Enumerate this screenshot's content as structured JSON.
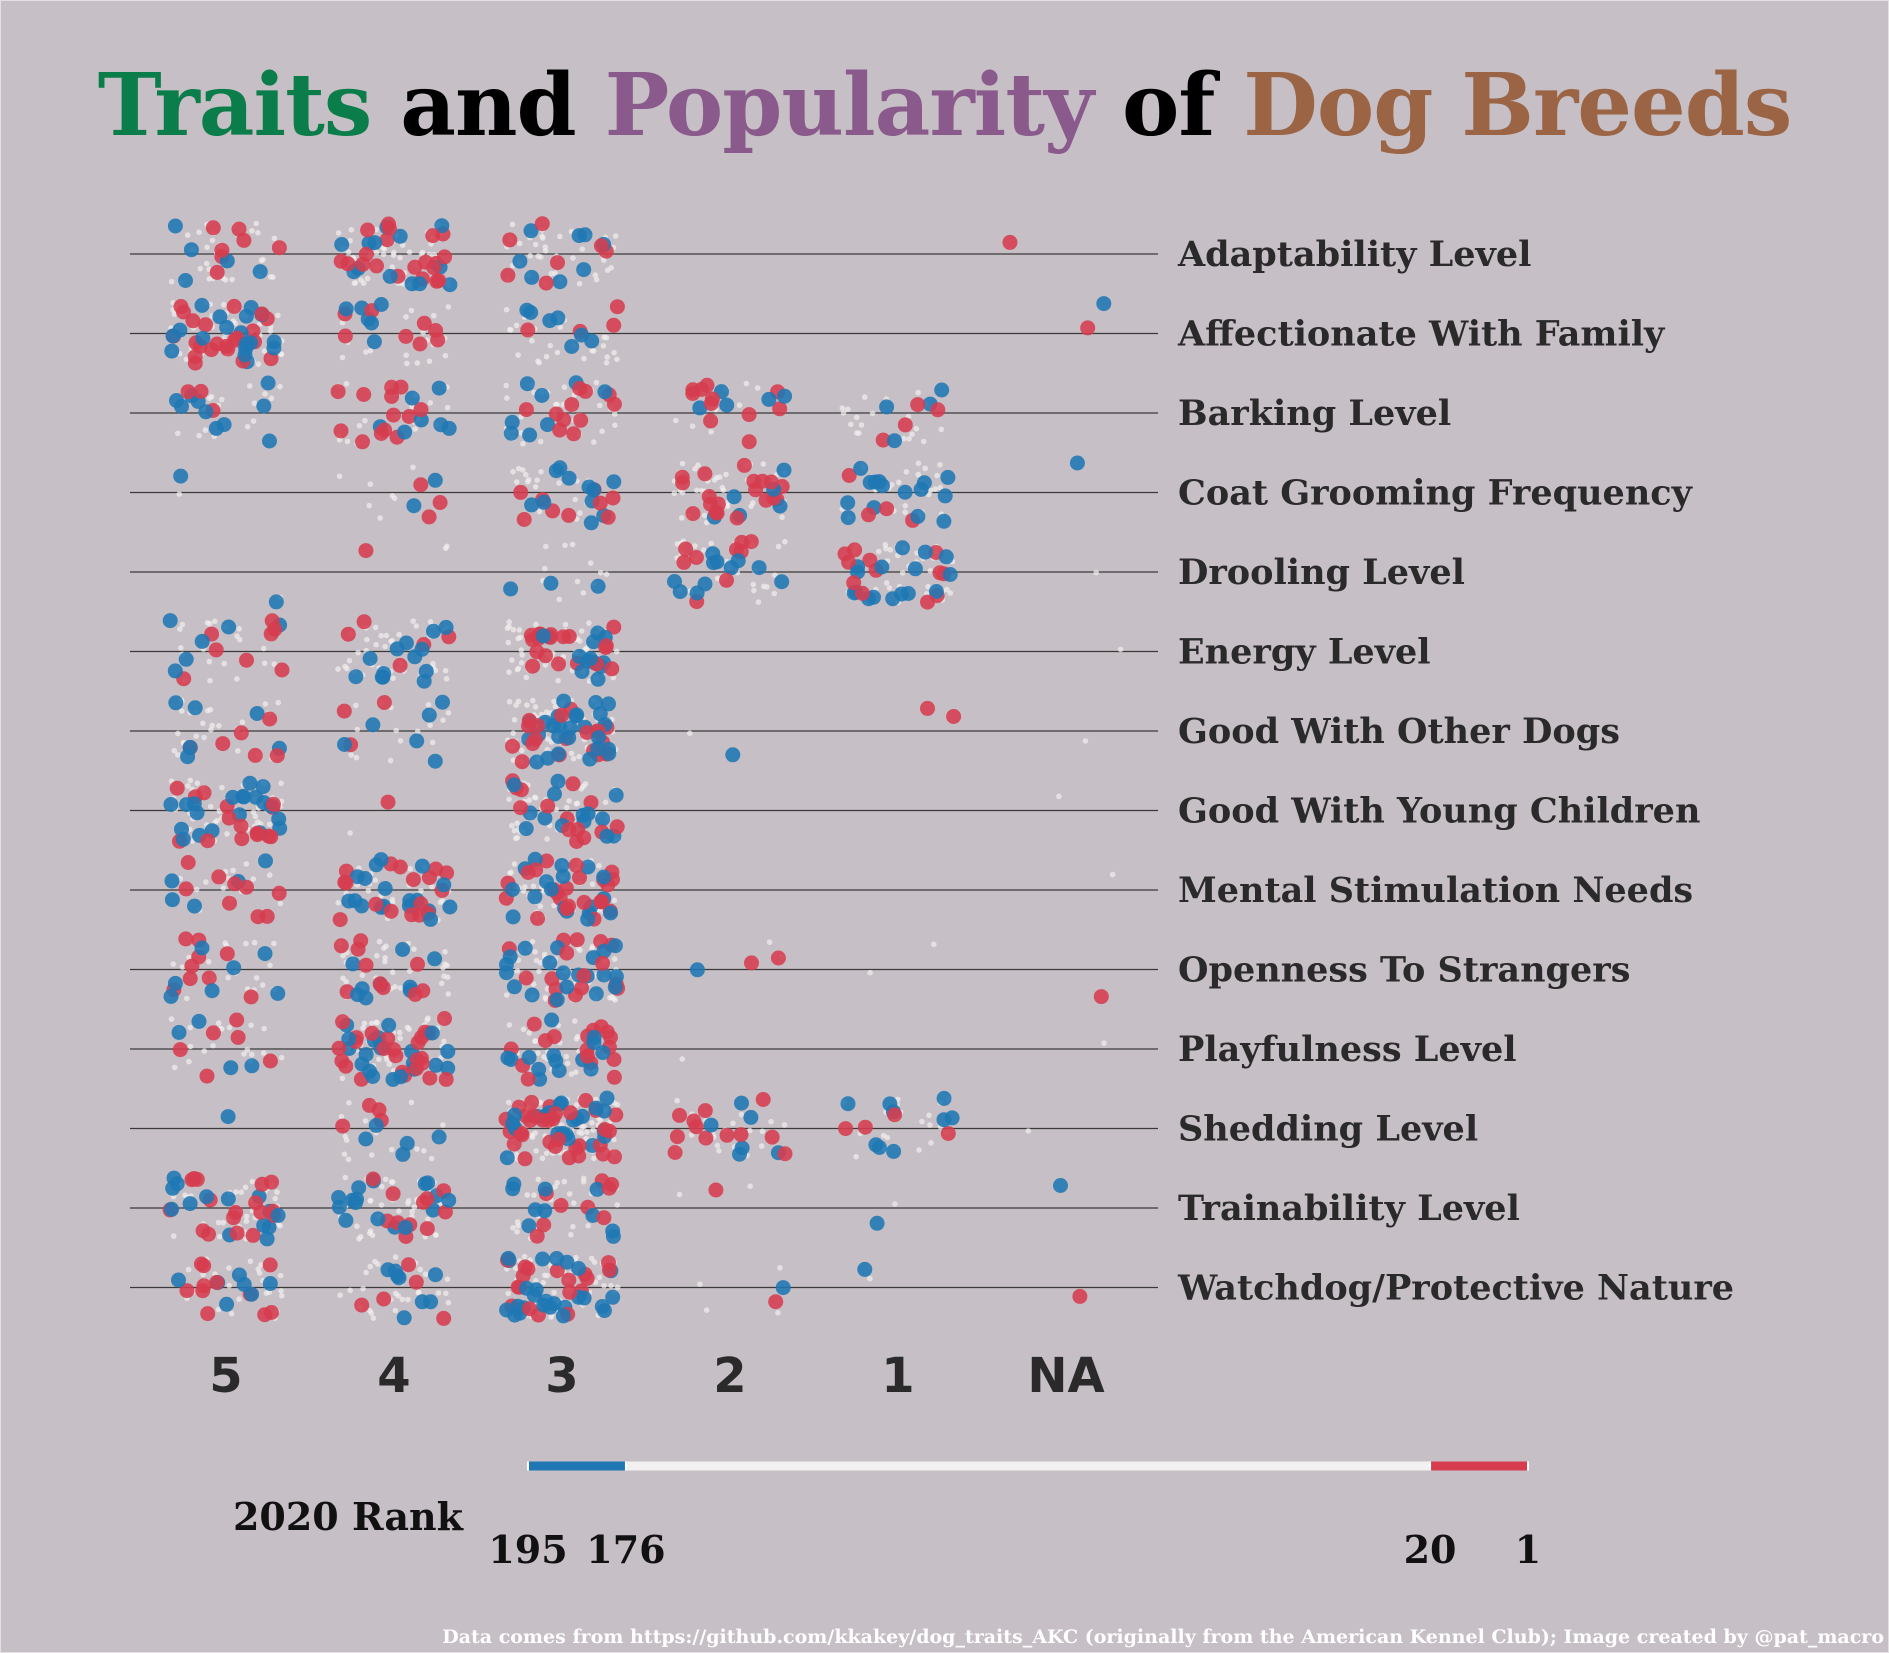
{
  "title": {
    "parts": [
      {
        "text": "Traits",
        "color": "#0a7d4a"
      },
      {
        "text": " and ",
        "color": "#000000"
      },
      {
        "text": "Popularity",
        "color": "#8b5a8c"
      },
      {
        "text": " of ",
        "color": "#000000"
      },
      {
        "text": "Dog Breeds",
        "color": "#9b6444"
      }
    ]
  },
  "caption": "Data comes from https://github.com/kkakey/dog_traits_AKC (originally from the American Kennel Club); Image created by @pat_macro",
  "chart_data": {
    "type": "scatter",
    "x_categories": [
      "5",
      "4",
      "3",
      "2",
      "1",
      "NA"
    ],
    "y_categories": [
      "Adaptability Level",
      "Affectionate With Family",
      "Barking Level",
      "Coat Grooming Frequency",
      "Drooling Level",
      "Energy Level",
      "Good With Other Dogs",
      "Good With Young Children",
      "Mental Stimulation Needs",
      "Openness To Strangers",
      "Playfulness Level",
      "Shedding Level",
      "Trainability Level",
      "Watchdog/Protective Nature"
    ],
    "approx_point_counts": [
      [
        45,
        90,
        55,
        0,
        0,
        1
      ],
      [
        100,
        35,
        40,
        0,
        0,
        2
      ],
      [
        30,
        40,
        60,
        25,
        30,
        0
      ],
      [
        2,
        12,
        40,
        70,
        45,
        1
      ],
      [
        2,
        3,
        15,
        55,
        70,
        1
      ],
      [
        35,
        60,
        90,
        0,
        0,
        1
      ],
      [
        40,
        25,
        120,
        2,
        2,
        1
      ],
      [
        95,
        2,
        80,
        0,
        0,
        1
      ],
      [
        30,
        70,
        95,
        0,
        0,
        1
      ],
      [
        40,
        55,
        90,
        5,
        2,
        1
      ],
      [
        30,
        100,
        70,
        1,
        0,
        1
      ],
      [
        1,
        30,
        150,
        40,
        35,
        1
      ],
      [
        80,
        70,
        50,
        3,
        2,
        1
      ],
      [
        45,
        45,
        110,
        6,
        2,
        1
      ]
    ],
    "color_legend": {
      "title": "2020 Rank",
      "tick_labels": [
        "195",
        "176",
        "20",
        "1"
      ],
      "segments": [
        {
          "from": 195,
          "to": 176,
          "color": "#1f78b4"
        },
        {
          "from": 176,
          "to": 20,
          "color": "#f2f0f0"
        },
        {
          "from": 20,
          "to": 1,
          "color": "#d63c4e"
        }
      ]
    },
    "colors": {
      "low_rank": "#1f78b4",
      "mid_rank": "#f2f0f0",
      "top_rank": "#d63c4e",
      "gridline": "#3a3a3a",
      "background": "#c6bfc5"
    }
  }
}
